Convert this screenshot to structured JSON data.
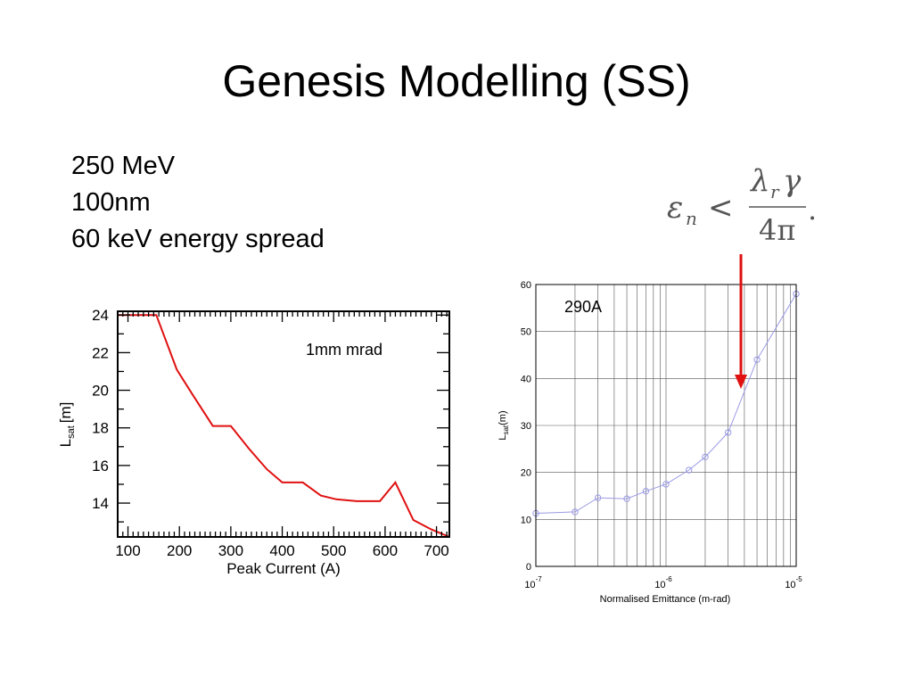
{
  "slide": {
    "title": "Genesis Modelling (SS)",
    "params": [
      "250 MeV",
      "100nm",
      "60 keV energy spread"
    ]
  },
  "formula": {
    "lhs_symbol": "ε",
    "lhs_sub": "n",
    "relation": "<",
    "num_symbol": "λ",
    "num_sub": "r",
    "num_gamma": "γ",
    "denominator": "4π",
    "trail": "."
  },
  "colors": {
    "left_line": "#e01010",
    "right_line": "#9a9ae6",
    "arrow": "#e01010"
  },
  "chart_data": [
    {
      "type": "line",
      "annotation": "1mm mrad",
      "xlabel": "Peak Current (A)",
      "ylabel_main": "L",
      "ylabel_sub": "sat",
      "ylabel_unit": "[m]",
      "xlim": [
        80,
        725
      ],
      "ylim": [
        12.2,
        24.2
      ],
      "xticks": [
        100,
        200,
        300,
        400,
        500,
        600,
        700
      ],
      "yticks": [
        14,
        16,
        18,
        20,
        22,
        24
      ],
      "x": [
        80,
        155,
        195,
        225,
        265,
        300,
        335,
        370,
        400,
        440,
        475,
        505,
        545,
        590,
        620,
        655,
        690,
        725
      ],
      "y": [
        24.0,
        24.0,
        21.1,
        19.8,
        18.1,
        18.1,
        16.9,
        15.8,
        15.1,
        15.1,
        14.4,
        14.2,
        14.1,
        14.1,
        15.1,
        13.1,
        12.6,
        12.2
      ]
    },
    {
      "type": "line",
      "annotation": "290A",
      "xlabel": "Normalised Emittance (m-rad)",
      "ylabel_main": "L",
      "ylabel_sub": "sat",
      "ylabel_unit": "(m)",
      "x_scale": "log",
      "xlim": [
        1e-07,
        1e-05
      ],
      "ylim": [
        0,
        60
      ],
      "xticks": [
        {
          "base": "10",
          "exp": "-7"
        },
        {
          "base": "10",
          "exp": "-6"
        },
        {
          "base": "10",
          "exp": "-5"
        }
      ],
      "yticks": [
        0,
        10,
        20,
        30,
        40,
        50,
        60
      ],
      "x": [
        1e-07,
        2e-07,
        3e-07,
        5e-07,
        7e-07,
        1e-06,
        1.5e-06,
        2e-06,
        3e-06,
        5e-06,
        1e-05
      ],
      "y": [
        11.3,
        11.6,
        14.6,
        14.4,
        16.0,
        17.5,
        20.5,
        23.3,
        28.5,
        44.0,
        58.0
      ],
      "grid": true,
      "marker": "circle"
    }
  ]
}
